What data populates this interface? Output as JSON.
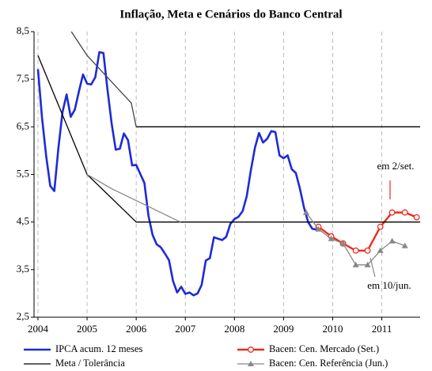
{
  "chart_data": {
    "type": "line",
    "title": "Inflação, Meta e Cenários do Banco Central",
    "xlim": [
      2003.92,
      2011.78
    ],
    "xticks": [
      2004,
      2005,
      2006,
      2007,
      2008,
      2009,
      2010,
      2011
    ],
    "ylim": [
      2.5,
      8.5
    ],
    "yticks": [
      {
        "value": 2.5,
        "label": "2,5"
      },
      {
        "value": 3.5,
        "label": "3,5"
      },
      {
        "value": 4.5,
        "label": "4,5"
      },
      {
        "value": 5.5,
        "label": "5,5"
      },
      {
        "value": 6.5,
        "label": "6,5"
      },
      {
        "value": 7.5,
        "label": "7,5"
      },
      {
        "value": 8.5,
        "label": "8,5"
      }
    ],
    "grid": "x",
    "series": [
      {
        "name": "IPCA acum. 12 meses",
        "color": "#1e2ad8",
        "marker": "none",
        "x": [
          2004.0,
          2004.083,
          2004.167,
          2004.25,
          2004.333,
          2004.417,
          2004.5,
          2004.583,
          2004.667,
          2004.75,
          2004.833,
          2004.917,
          2005.0,
          2005.083,
          2005.167,
          2005.25,
          2005.333,
          2005.417,
          2005.5,
          2005.583,
          2005.667,
          2005.75,
          2005.833,
          2005.917,
          2006.0,
          2006.083,
          2006.167,
          2006.25,
          2006.333,
          2006.417,
          2006.5,
          2006.583,
          2006.667,
          2006.75,
          2006.833,
          2006.917,
          2007.0,
          2007.083,
          2007.167,
          2007.25,
          2007.333,
          2007.417,
          2007.5,
          2007.583,
          2007.667,
          2007.75,
          2007.833,
          2007.917,
          2008.0,
          2008.083,
          2008.167,
          2008.25,
          2008.333,
          2008.417,
          2008.5,
          2008.583,
          2008.667,
          2008.75,
          2008.833,
          2008.917,
          2009.0,
          2009.083,
          2009.167,
          2009.25,
          2009.333,
          2009.417,
          2009.5,
          2009.583,
          2009.667
        ],
        "values": [
          7.71,
          6.69,
          5.89,
          5.26,
          5.15,
          6.06,
          6.81,
          7.18,
          6.71,
          6.86,
          7.24,
          7.6,
          7.41,
          7.39,
          7.54,
          8.07,
          8.05,
          7.27,
          6.57,
          6.02,
          6.04,
          6.36,
          6.22,
          5.69,
          5.7,
          5.51,
          5.32,
          4.63,
          4.23,
          4.03,
          3.97,
          3.84,
          3.7,
          3.26,
          3.02,
          3.14,
          2.99,
          3.02,
          2.96,
          3.0,
          3.18,
          3.69,
          3.74,
          4.18,
          4.15,
          4.12,
          4.19,
          4.46,
          4.56,
          4.61,
          4.73,
          5.04,
          5.58,
          6.06,
          6.37,
          6.17,
          6.25,
          6.41,
          6.39,
          5.9,
          5.84,
          5.9,
          5.61,
          5.53,
          5.2,
          4.8,
          4.5,
          4.36,
          4.34
        ]
      },
      {
        "name": "Bacen: Cen. Mercado (Set.)",
        "color": "#ee2a1f",
        "marker": "circle",
        "x": [
          2009.71,
          2009.97,
          2010.21,
          2010.47,
          2010.71,
          2010.97,
          2011.21,
          2011.47,
          2011.71
        ],
        "values": [
          4.4,
          4.2,
          4.05,
          3.9,
          3.9,
          4.4,
          4.7,
          4.7,
          4.6
        ]
      },
      {
        "name": "Meta / Tolerância",
        "color": "#000000",
        "marker": "none",
        "x": [
          2004.0,
          2005.0,
          2006.0,
          2011.78,
          null,
          2006.0,
          2011.78
        ],
        "values": [
          8.0,
          5.5,
          4.5,
          4.5,
          null,
          6.5,
          6.5
        ]
      },
      {
        "name": "Bacen: Cen. Referência (Jun.)",
        "color": "#888888",
        "marker": "triangle",
        "x": [
          2009.46,
          2009.71,
          2009.97,
          2010.21,
          2010.47,
          2010.71,
          2010.97,
          2011.21,
          2011.47
        ],
        "values": [
          4.7,
          4.35,
          4.15,
          4.05,
          3.6,
          3.6,
          3.9,
          4.1,
          4.0
        ]
      },
      {
        "color": "#444444",
        "marker": "none",
        "x": [
          2004.68,
          2005.0,
          2005.9,
          2006.0
        ],
        "values": [
          8.5,
          8.0,
          7.0,
          6.5
        ]
      },
      {
        "color": "#888888",
        "marker": "none",
        "x": [
          2005.0,
          2005.5,
          2006.0,
          2006.9
        ],
        "values": [
          5.5,
          5.2,
          4.95,
          4.5
        ]
      }
    ],
    "annotations": [
      {
        "text": "em 2/set.",
        "color": "#ee2a1f"
      },
      {
        "text": "em 10/jun.",
        "color": "#888888"
      }
    ]
  }
}
